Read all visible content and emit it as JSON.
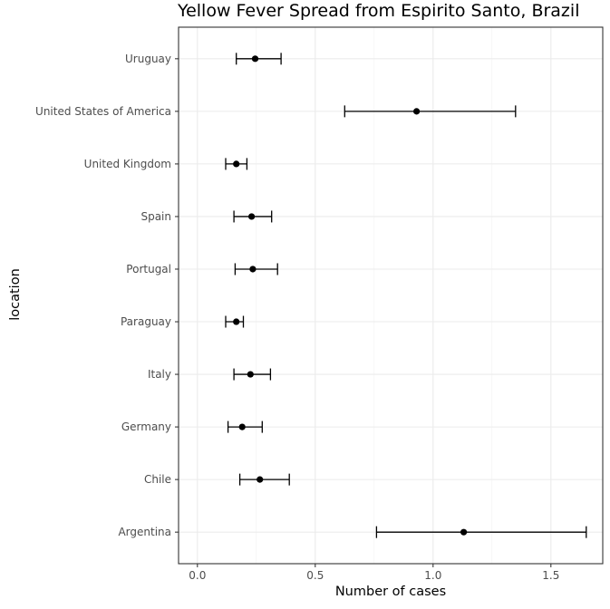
{
  "chart_data": {
    "type": "errorbar",
    "title": "Yellow Fever Spread from Espirito Santo, Brazil",
    "xlabel": "Number of cases",
    "ylabel": "location",
    "xlim": [
      -0.08,
      1.72
    ],
    "xticks": [
      0.0,
      0.5,
      1.0,
      1.5
    ],
    "xtick_labels": [
      "0.0",
      "0.5",
      "1.0",
      "1.5"
    ],
    "xgrid_minor": [
      0.25,
      0.75,
      1.25
    ],
    "categories": [
      "Argentina",
      "Chile",
      "Germany",
      "Italy",
      "Paraguay",
      "Portugal",
      "Spain",
      "United Kingdom",
      "United States of America",
      "Uruguay"
    ],
    "points": [
      {
        "location": "Argentina",
        "value": 1.13,
        "lower": 0.76,
        "upper": 1.65
      },
      {
        "location": "Chile",
        "value": 0.265,
        "lower": 0.18,
        "upper": 0.39
      },
      {
        "location": "Germany",
        "value": 0.19,
        "lower": 0.13,
        "upper": 0.275
      },
      {
        "location": "Italy",
        "value": 0.225,
        "lower": 0.155,
        "upper": 0.31
      },
      {
        "location": "Paraguay",
        "value": 0.165,
        "lower": 0.12,
        "upper": 0.195
      },
      {
        "location": "Portugal",
        "value": 0.235,
        "lower": 0.16,
        "upper": 0.34
      },
      {
        "location": "Spain",
        "value": 0.23,
        "lower": 0.155,
        "upper": 0.315
      },
      {
        "location": "United Kingdom",
        "value": 0.165,
        "lower": 0.12,
        "upper": 0.21
      },
      {
        "location": "United States of America",
        "value": 0.93,
        "lower": 0.625,
        "upper": 1.35
      },
      {
        "location": "Uruguay",
        "value": 0.245,
        "lower": 0.165,
        "upper": 0.355
      }
    ]
  }
}
